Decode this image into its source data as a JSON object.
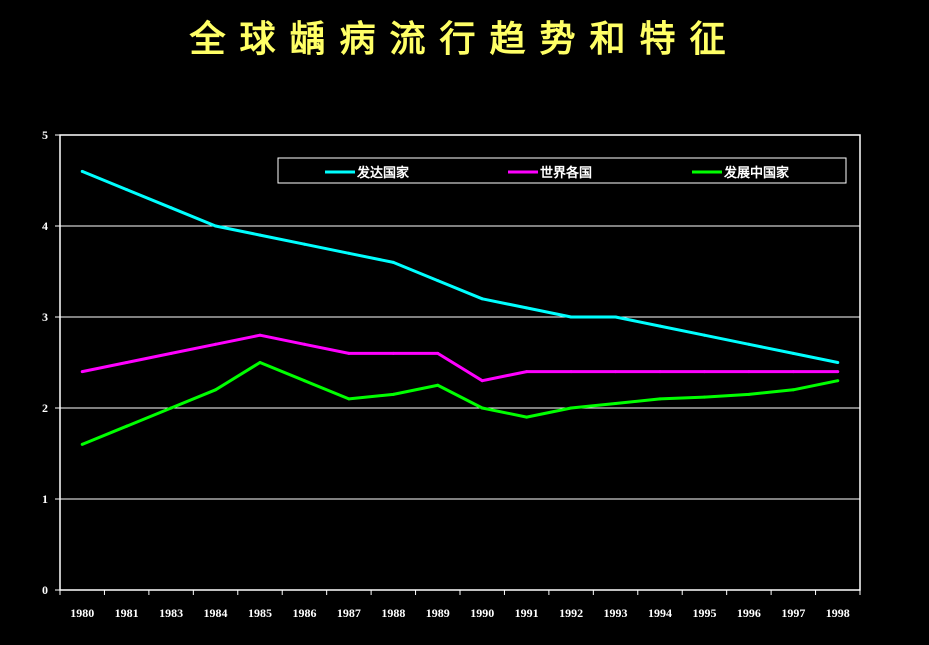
{
  "chart_data": {
    "type": "line",
    "title": "全球龋病流行趋势和特征",
    "xlabel": "",
    "ylabel": "",
    "ylim": [
      0,
      5
    ],
    "yticks": [
      "0",
      "1",
      "2",
      "3",
      "4",
      "5"
    ],
    "grid": true,
    "legend_position": "top-right",
    "categories": [
      "1980",
      "1981",
      "1983",
      "1984",
      "1985",
      "1986",
      "1987",
      "1988",
      "1989",
      "1990",
      "1991",
      "1992",
      "1993",
      "1994",
      "1995",
      "1996",
      "1997",
      "1998"
    ],
    "series": [
      {
        "name": "发达国家",
        "color": "#00ffff",
        "values": [
          4.6,
          4.4,
          4.2,
          4.0,
          3.9,
          3.8,
          3.7,
          3.6,
          3.4,
          3.2,
          3.1,
          3.0,
          3.0,
          2.9,
          2.8,
          2.7,
          2.6,
          2.5
        ]
      },
      {
        "name": "世界各国",
        "color": "#ff00ff",
        "values": [
          2.4,
          2.5,
          2.6,
          2.7,
          2.8,
          2.7,
          2.6,
          2.6,
          2.6,
          2.3,
          2.4,
          2.4,
          2.4,
          2.4,
          2.4,
          2.4,
          2.4,
          2.4
        ]
      },
      {
        "name": "发展中国家",
        "color": "#00ff00",
        "values": [
          1.6,
          1.8,
          2.0,
          2.2,
          2.5,
          2.3,
          2.1,
          2.15,
          2.25,
          2.0,
          1.9,
          2.0,
          2.05,
          2.1,
          2.12,
          2.15,
          2.2,
          2.3
        ]
      }
    ]
  }
}
